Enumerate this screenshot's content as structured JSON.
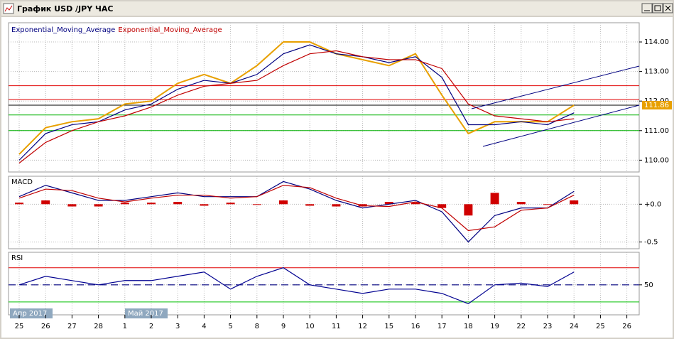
{
  "window_title": "График USD /JPY ЧАС",
  "chart_data": [
    {
      "type": "line",
      "ylim": [
        109.6,
        114.65
      ],
      "yticks": [
        {
          "value": 110,
          "label": "110.00"
        },
        {
          "value": 111,
          "label": "111.00"
        },
        {
          "value": 112,
          "label": "112.00"
        },
        {
          "value": 113,
          "label": "113.00"
        },
        {
          "value": 114,
          "label": "114.00"
        }
      ],
      "grid": true,
      "last_price": 111.86,
      "hlines": [
        {
          "value": 112.52,
          "color": "#e00000"
        },
        {
          "value": 112.05,
          "color": "#e00000"
        },
        {
          "value": 111.53,
          "color": "#00b000"
        },
        {
          "value": 111.0,
          "color": "#00b000"
        }
      ],
      "series": [
        {
          "color": "#e8a000",
          "values": [
            110.2,
            111.1,
            111.3,
            111.4,
            111.9,
            112.0,
            112.6,
            112.9,
            112.6,
            113.2,
            114.0,
            114.0,
            113.6,
            113.4,
            113.2,
            113.6,
            112.2,
            110.9,
            111.3,
            111.3,
            111.3,
            111.86,
            null,
            null
          ]
        },
        {
          "name": "Exponential_Moving_Average",
          "color": "#000080",
          "values": [
            110.0,
            110.9,
            111.2,
            111.3,
            111.7,
            111.9,
            112.4,
            112.7,
            112.6,
            112.9,
            113.6,
            113.9,
            113.6,
            113.5,
            113.3,
            113.5,
            112.8,
            111.2,
            111.2,
            111.3,
            111.2,
            111.6,
            null,
            null
          ]
        },
        {
          "name": "Exponential_Moving_Average",
          "color": "#c00000",
          "values": [
            109.9,
            110.6,
            111.0,
            111.3,
            111.5,
            111.8,
            112.2,
            112.5,
            112.6,
            112.7,
            113.2,
            113.6,
            113.7,
            113.5,
            113.4,
            113.4,
            113.1,
            111.9,
            111.5,
            111.4,
            111.3,
            111.4,
            null,
            null
          ]
        }
      ]
    },
    {
      "type": "line",
      "title": "MACD",
      "ylim": [
        -0.59,
        0.37
      ],
      "yticks": [
        -0.5,
        {
          "value": 0,
          "label": "+0.0"
        }
      ],
      "grid": true,
      "series": [
        {
          "type": "bar",
          "color": "#d00000",
          "values": [
            0.02,
            0.05,
            -0.03,
            -0.03,
            0.02,
            0.02,
            0.03,
            -0.02,
            0.02,
            0.0,
            0.05,
            -0.02,
            -0.03,
            -0.03,
            0.03,
            0.02,
            -0.05,
            -0.15,
            0.15,
            0.03,
            0.0,
            0.05,
            null,
            null
          ]
        },
        {
          "color": "#000080",
          "values": [
            0.1,
            0.25,
            0.15,
            0.05,
            0.05,
            0.1,
            0.15,
            0.1,
            0.1,
            0.1,
            0.3,
            0.2,
            0.05,
            -0.05,
            0.0,
            0.05,
            -0.1,
            -0.5,
            -0.15,
            -0.05,
            -0.05,
            0.17,
            null,
            null
          ]
        },
        {
          "color": "#c00000",
          "values": [
            0.08,
            0.2,
            0.18,
            0.08,
            0.03,
            0.08,
            0.12,
            0.12,
            0.08,
            0.1,
            0.25,
            0.22,
            0.08,
            -0.02,
            -0.03,
            0.03,
            -0.05,
            -0.35,
            -0.3,
            -0.08,
            -0.05,
            0.12,
            null,
            null
          ]
        }
      ]
    },
    {
      "type": "line",
      "title": "RSI",
      "ylim": [
        15,
        88
      ],
      "yticks": [
        50
      ],
      "grid": true,
      "months": [
        "Апр 2017",
        "Май 2017"
      ],
      "hlines": [
        {
          "value": 70,
          "color": "#e00000"
        },
        {
          "value": 30,
          "color": "#00c000"
        },
        {
          "value": 50,
          "color": "#000080",
          "dash": true
        }
      ],
      "categories": [
        "25",
        "26",
        "27",
        "28",
        "1",
        "2",
        "3",
        "4",
        "5",
        "8",
        "9",
        "10",
        "11",
        "12",
        "15",
        "16",
        "17",
        "18",
        "19",
        "22",
        "23",
        "24",
        "25",
        "26"
      ],
      "series": [
        {
          "color": "#000090",
          "values": [
            50,
            60,
            55,
            50,
            55,
            55,
            60,
            65,
            45,
            60,
            70,
            50,
            45,
            40,
            45,
            45,
            40,
            28,
            50,
            52,
            48,
            65,
            null,
            null
          ]
        }
      ]
    }
  ]
}
